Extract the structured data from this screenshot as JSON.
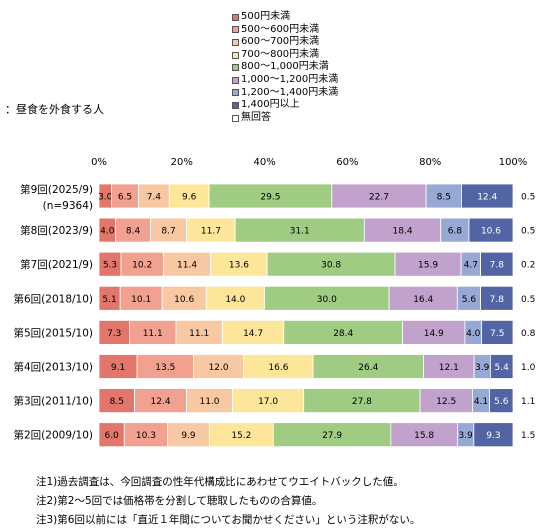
{
  "subtitle": "：昼食を外食する人",
  "notes": [
    "注1)過去調査は、今回調査の性年代構成比にあわせてウエイトバックした値。",
    "注2)第2～5回では価格帯を分割して聴取したものの合算値。",
    "注3)第6回以前には「直近１年間についてお聞かせください」という注釈がない。"
  ],
  "chart_data": {
    "type": "bar",
    "orientation": "horizontal",
    "stacked": true,
    "xlim": [
      0,
      100
    ],
    "x_ticks": [
      "0%",
      "20%",
      "40%",
      "60%",
      "80%",
      "100%"
    ],
    "grid": false,
    "legend_position": "top",
    "categories": [
      [
        "第9回(2025/9)",
        "(n=9364)"
      ],
      [
        "第8回(2023/9)"
      ],
      [
        "第7回(2021/9)"
      ],
      [
        "第6回(2018/10)"
      ],
      [
        "第5回(2015/10)"
      ],
      [
        "第4回(2013/10)"
      ],
      [
        "第3回(2011/10)"
      ],
      [
        "第2回(2009/10)"
      ]
    ],
    "series": [
      {
        "name": "500円未満",
        "color": "#E3766B",
        "values": [
          3.0,
          4.0,
          5.3,
          5.1,
          7.3,
          9.1,
          8.5,
          6.0
        ]
      },
      {
        "name": "500～600円未満",
        "color": "#F2A08F",
        "values": [
          6.5,
          8.4,
          10.2,
          10.1,
          11.1,
          13.5,
          12.4,
          10.3
        ]
      },
      {
        "name": "600～700円未満",
        "color": "#F8C8A3",
        "values": [
          7.4,
          8.7,
          11.4,
          10.6,
          11.1,
          12.0,
          11.0,
          9.9
        ]
      },
      {
        "name": "700～800円未満",
        "color": "#FDE69A",
        "values": [
          9.6,
          11.7,
          13.6,
          14.0,
          14.7,
          16.6,
          17.0,
          15.2
        ]
      },
      {
        "name": "800～1,000円未満",
        "color": "#9FCB82",
        "values": [
          29.5,
          31.1,
          30.8,
          30.0,
          28.4,
          26.4,
          27.8,
          27.9
        ]
      },
      {
        "name": "1,000～1,200円未満",
        "color": "#C0A2CC",
        "values": [
          22.7,
          18.4,
          15.9,
          16.4,
          14.9,
          12.1,
          12.5,
          15.8
        ]
      },
      {
        "name": "1,200～1,400円未満",
        "color": "#98A8D4",
        "values": [
          8.5,
          6.8,
          4.7,
          5.6,
          4.0,
          3.9,
          4.1,
          3.9
        ]
      },
      {
        "name": "1,400円以上",
        "color": "#5264A3",
        "values": [
          12.4,
          10.6,
          7.8,
          7.8,
          7.5,
          5.4,
          5.6,
          9.3
        ]
      },
      {
        "name": "無回答",
        "color": "#FFFFFF",
        "values": [
          0.5,
          0.5,
          0.2,
          0.5,
          0.8,
          1.0,
          1.1,
          1.5
        ]
      }
    ]
  }
}
